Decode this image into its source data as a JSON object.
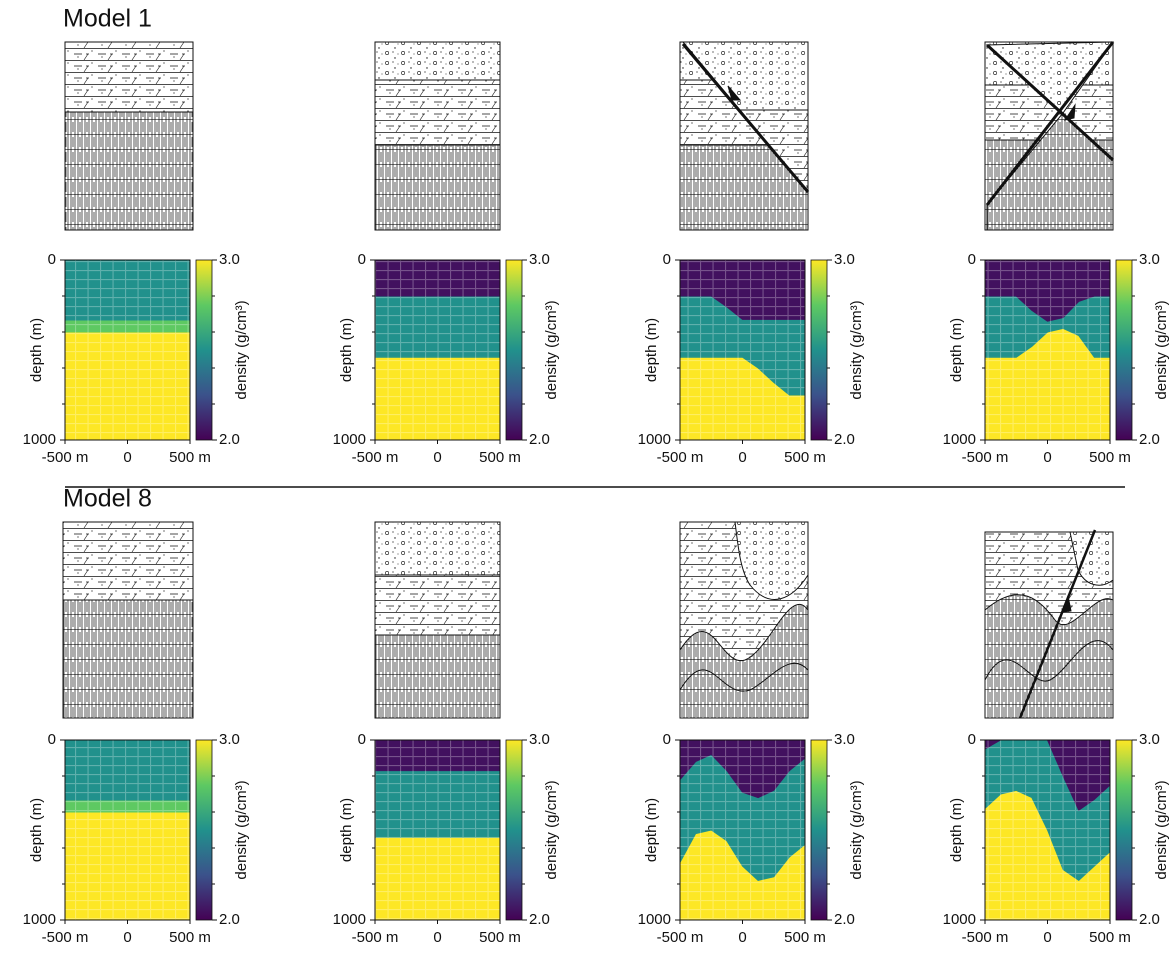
{
  "axes": {
    "depth_label": "depth (m)",
    "ylim": [
      0,
      1000
    ],
    "yticks": [
      0,
      1000
    ],
    "minor_yticks": [
      200,
      400,
      600,
      800
    ],
    "xlim": [
      -500,
      500
    ],
    "xticks": [
      {
        "value": -500,
        "label": "-500 m"
      },
      0,
      {
        "value": 500,
        "label": "500 m"
      }
    ],
    "x_samples": [
      -500,
      -375,
      -250,
      -125,
      0,
      125,
      250,
      375,
      500
    ],
    "colorbar_label": "density (g/cm³)",
    "clim": [
      2,
      3
    ],
    "cticks": [
      {
        "value": 3,
        "label": "3.0"
      },
      {
        "value": 2,
        "label": "2.0"
      }
    ],
    "minor_cticks": [
      2.2,
      2.4,
      2.6,
      2.8
    ]
  },
  "rows": [
    {
      "title": "Model 1",
      "panels": [
        {
          "layers": [
            {
              "density": 2.5,
              "bottom": [
                333,
                333,
                333,
                333,
                333,
                333,
                333,
                333,
                333
              ]
            },
            {
              "density": 2.75,
              "bottom": [
                400,
                400,
                400,
                400,
                400,
                400,
                400,
                400,
                400
              ]
            },
            {
              "density": 3.0
            }
          ]
        },
        {
          "layers": [
            {
              "density": 2.05,
              "bottom": [
                200,
                200,
                200,
                200,
                200,
                200,
                200,
                200,
                200
              ]
            },
            {
              "density": 2.5,
              "bottom": [
                540,
                540,
                540,
                540,
                540,
                540,
                540,
                540,
                540
              ]
            },
            {
              "density": 3.0
            }
          ]
        },
        {
          "layers": [
            {
              "density": 2.05,
              "bottom": [
                200,
                200,
                200,
                260,
                330,
                330,
                330,
                330,
                330
              ]
            },
            {
              "density": 2.5,
              "bottom": [
                540,
                540,
                540,
                540,
                540,
                600,
                680,
                750,
                750
              ]
            },
            {
              "density": 3.0
            }
          ]
        },
        {
          "layers": [
            {
              "density": 2.05,
              "bottom": [
                200,
                200,
                200,
                280,
                340,
                320,
                230,
                200,
                200
              ]
            },
            {
              "density": 2.5,
              "bottom": [
                540,
                540,
                540,
                480,
                400,
                380,
                420,
                540,
                540
              ]
            },
            {
              "density": 3.0
            }
          ]
        }
      ]
    },
    {
      "title": "Model 8",
      "panels": [
        {
          "layers": [
            {
              "density": 2.5,
              "bottom": [
                333,
                333,
                333,
                333,
                333,
                333,
                333,
                333,
                333
              ]
            },
            {
              "density": 2.75,
              "bottom": [
                400,
                400,
                400,
                400,
                400,
                400,
                400,
                400,
                400
              ]
            },
            {
              "density": 3.0
            }
          ]
        },
        {
          "layers": [
            {
              "density": 2.05,
              "bottom": [
                170,
                170,
                170,
                170,
                170,
                170,
                170,
                170,
                170
              ]
            },
            {
              "density": 2.5,
              "bottom": [
                540,
                540,
                540,
                540,
                540,
                540,
                540,
                540,
                540
              ]
            },
            {
              "density": 3.0
            }
          ]
        },
        {
          "layers": [
            {
              "density": 2.05,
              "bottom": [
                220,
                120,
                80,
                170,
                290,
                320,
                280,
                170,
                100
              ]
            },
            {
              "density": 2.5,
              "bottom": [
                680,
                520,
                500,
                560,
                700,
                780,
                760,
                650,
                580
              ]
            },
            {
              "density": 3.0
            }
          ]
        },
        {
          "layers": [
            {
              "density": 2.05,
              "bottom": [
                50,
                0,
                0,
                0,
                0,
                200,
                390,
                330,
                250
              ]
            },
            {
              "density": 2.5,
              "bottom": [
                380,
                300,
                280,
                320,
                500,
                720,
                780,
                700,
                620
              ]
            },
            {
              "density": 3.0
            }
          ]
        }
      ]
    }
  ]
}
